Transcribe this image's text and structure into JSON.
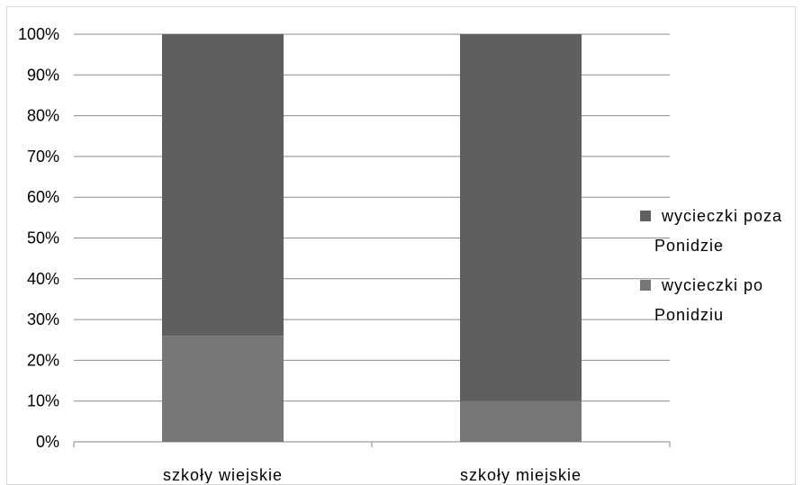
{
  "chart_data": {
    "type": "bar",
    "stacked": true,
    "categories": [
      "szkoły wiejskie",
      "szkoły miejskie"
    ],
    "series": [
      {
        "name": "wycieczki po Ponidziu",
        "values": [
          26,
          10
        ],
        "color": "#777777"
      },
      {
        "name": "wycieczki poza Ponidzie",
        "values": [
          74,
          90
        ],
        "color": "#5f5f5f"
      }
    ],
    "legend_lines": [
      [
        "wycieczki poza",
        "Ponidzie"
      ],
      [
        "wycieczki po",
        "Ponidziu"
      ]
    ],
    "y_ticks": [
      "0%",
      "10%",
      "20%",
      "30%",
      "40%",
      "50%",
      "60%",
      "70%",
      "80%",
      "90%",
      "100%"
    ],
    "ylim": [
      0,
      100
    ],
    "grid": true,
    "legend_position": "right"
  }
}
